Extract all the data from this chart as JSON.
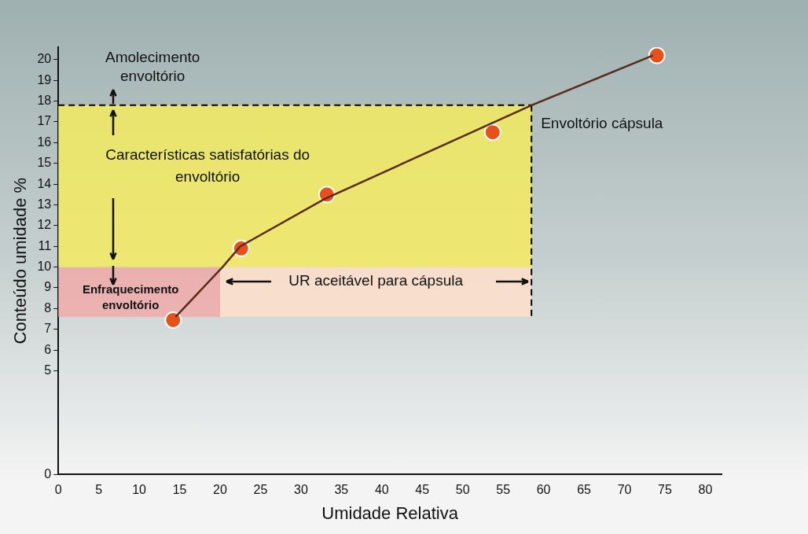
{
  "chart_data": {
    "type": "scatter",
    "xlabel": "Umidade Relativa",
    "ylabel": "Conteúdo umidade %",
    "x": [
      14.2,
      22.6,
      33.2,
      53.7,
      74
    ],
    "values": [
      7.45,
      10.9,
      13.5,
      16.5,
      20.2
    ],
    "color": "#e8501a",
    "marker": "circle",
    "series": [
      {
        "type": "line",
        "name": "Envoltório cápsula",
        "color": "#5a2a1a",
        "marker": "none",
        "x": [
          14.5,
          20.3,
          22.5,
          33,
          58.5,
          73.5
        ],
        "values": [
          7.6,
          10,
          11,
          13.3,
          17.8,
          20.2
        ]
      }
    ],
    "xlim": [
      0,
      82
    ],
    "xticks": [
      0,
      5,
      10,
      15,
      20,
      25,
      30,
      35,
      40,
      45,
      50,
      55,
      60,
      65,
      70,
      75,
      80
    ],
    "ylim": [
      0,
      20.6
    ],
    "yticks": [
      0,
      5,
      6,
      7,
      8,
      9,
      10,
      11,
      12,
      13,
      14,
      15,
      16,
      17,
      18,
      19,
      20
    ],
    "bands": [
      {
        "axis": "y",
        "from": 7.6,
        "to": 10,
        "label": "Enfraquecimento envoltório",
        "color": "#f2a8a8"
      },
      {
        "axis": "y",
        "from": 10,
        "to": 17.8,
        "label": "Características satisfatórias do envoltório",
        "color": "#f7ee5a"
      },
      {
        "axis": "x",
        "from": 20,
        "to": 58.5,
        "label": "UR aceitável para cápsula",
        "color": "#fffbe0"
      }
    ],
    "annotations": [
      "Amolecimento envoltório"
    ],
    "grid": false,
    "legend": false
  }
}
